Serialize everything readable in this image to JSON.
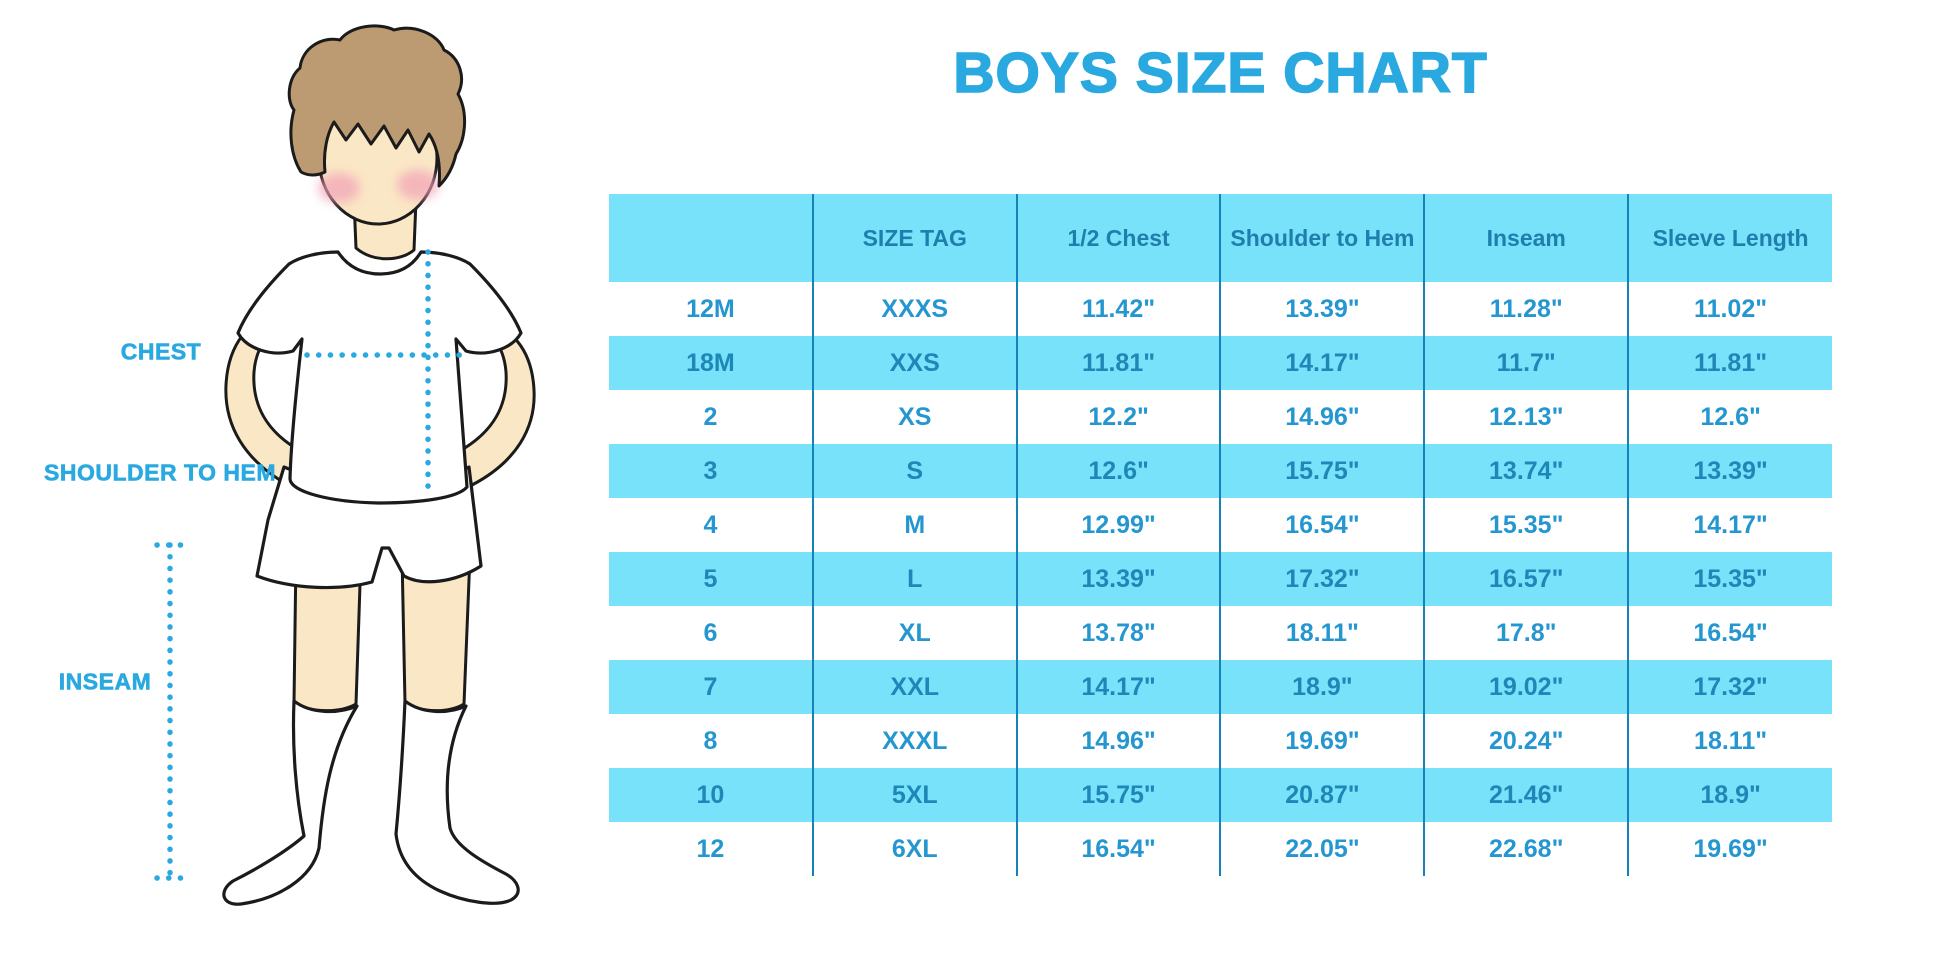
{
  "chart_data": {
    "type": "table",
    "title": "BOYS SIZE CHART",
    "columns": [
      "",
      "SIZE TAG",
      "1/2 Chest",
      "Shoulder to Hem",
      "Inseam",
      "Sleeve Length"
    ],
    "rows": [
      [
        "12M",
        "XXXS",
        "11.42\"",
        "13.39\"",
        "11.28\"",
        "11.02\""
      ],
      [
        "18M",
        "XXS",
        "11.81\"",
        "14.17\"",
        "11.7\"",
        "11.81\""
      ],
      [
        "2",
        "XS",
        "12.2\"",
        "14.96\"",
        "12.13\"",
        "12.6\""
      ],
      [
        "3",
        "S",
        "12.6\"",
        "15.75\"",
        "13.74\"",
        "13.39\""
      ],
      [
        "4",
        "M",
        "12.99\"",
        "16.54\"",
        "15.35\"",
        "14.17\""
      ],
      [
        "5",
        "L",
        "13.39\"",
        "17.32\"",
        "16.57\"",
        "15.35\""
      ],
      [
        "6",
        "XL",
        "13.78\"",
        "18.11\"",
        "17.8\"",
        "16.54\""
      ],
      [
        "7",
        "XXL",
        "14.17\"",
        "18.9\"",
        "19.02\"",
        "17.32\""
      ],
      [
        "8",
        "XXXL",
        "14.96\"",
        "19.69\"",
        "20.24\"",
        "18.11\""
      ],
      [
        "10",
        "5XL",
        "15.75\"",
        "20.87\"",
        "21.46\"",
        "18.9\""
      ],
      [
        "12",
        "6XL",
        "16.54\"",
        "22.05\"",
        "22.68\"",
        "19.69\""
      ]
    ],
    "units": "inches",
    "row_striping": "alternating white and light blue, first data row white",
    "legend_position": "none"
  },
  "illustration": {
    "subject": "cartoon boy in white t-shirt, white shorts and knee socks",
    "labels": {
      "chest": "CHEST",
      "shoulder_to_hem": "SHOULDER TO HEM",
      "inseam": "INSEAM"
    }
  },
  "colors": {
    "accent_blue": "#29A9E0",
    "band_blue": "#77E2FA",
    "header_text": "#1E7FAD",
    "row_text": "#2496D0",
    "band_row_text": "#1F86B8",
    "divider": "#1583B8",
    "skin": "#FAE7C5",
    "hair": "#BD9B72",
    "cheek": "#F2A2B8"
  }
}
